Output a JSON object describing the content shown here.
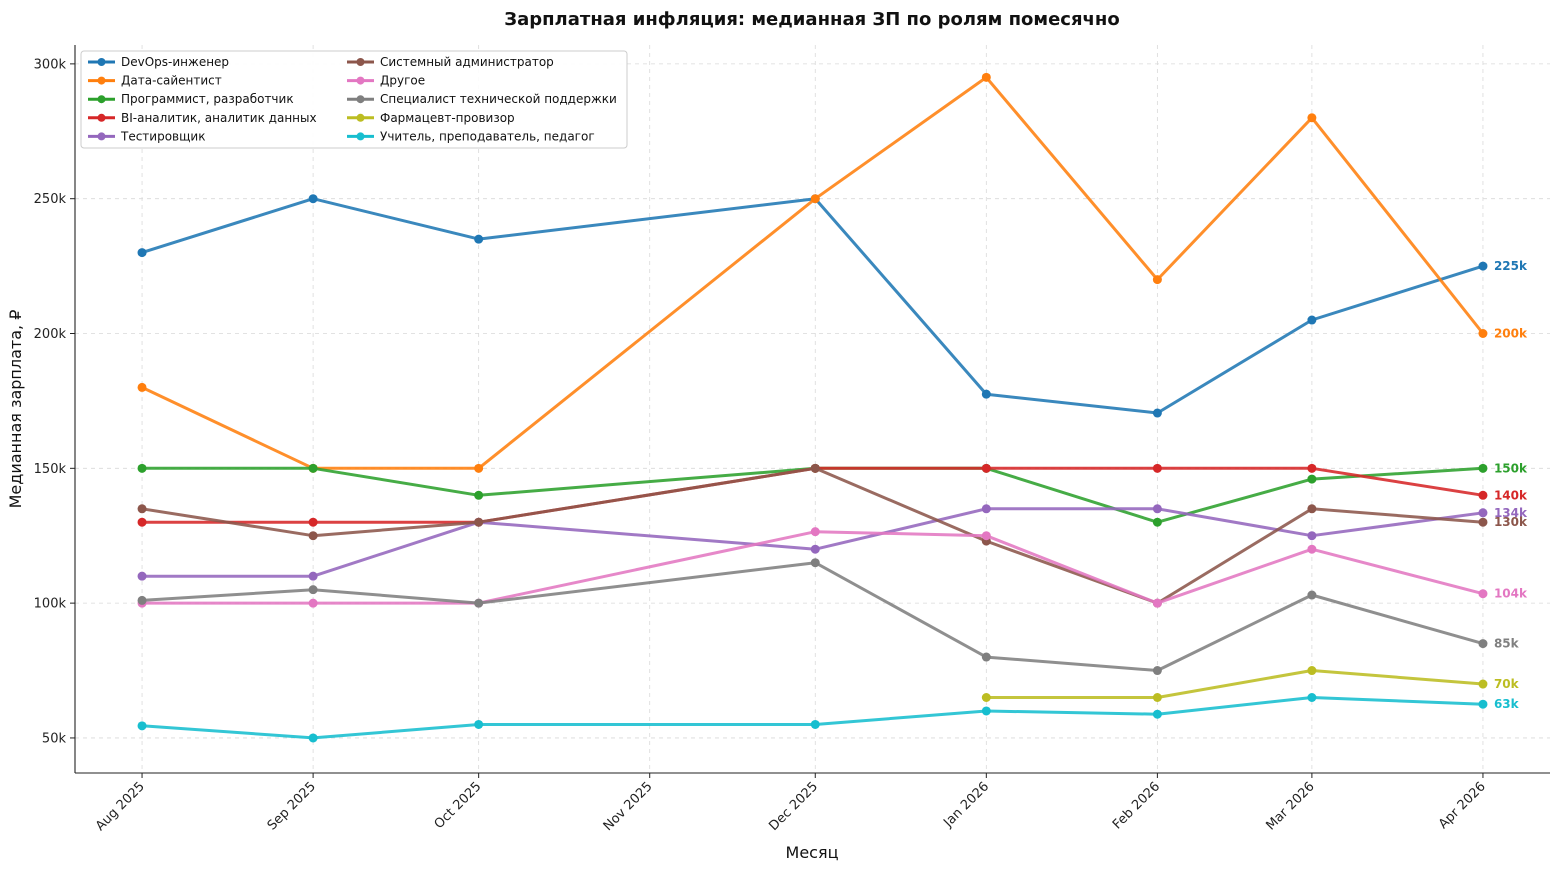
{
  "chart_data": {
    "type": "line",
    "title": "Зарплатная инфляция: медианная ЗП по ролям помесячно",
    "xlabel": "Месяц",
    "ylabel": "Медианная зарплата, ₽",
    "ylim": [
      37000,
      307000
    ],
    "y_ticks": [
      50000,
      100000,
      150000,
      200000,
      250000,
      300000
    ],
    "y_tick_labels": [
      "50k",
      "100k",
      "150k",
      "200k",
      "250k",
      "300k"
    ],
    "x": [
      "2025-08-01",
      "2025-09-01",
      "2025-10-01",
      "2025-11-01",
      "2025-12-01",
      "2026-01-01",
      "2026-02-01",
      "2026-03-01",
      "2026-04-01"
    ],
    "x_tick_labels": [
      "Aug 2025",
      "Sep 2025",
      "Oct 2025",
      "Nov 2025",
      "Dec 2025",
      "Jan 2026",
      "Feb 2026",
      "Mar 2026",
      "Apr 2026"
    ],
    "grid": true,
    "legend_position": "top-left",
    "series": [
      {
        "name": "DevOps-инженер",
        "color": "#1f77b4",
        "points": [
          [
            "2025-08-01",
            230000
          ],
          [
            "2025-09-01",
            250000
          ],
          [
            "2025-10-01",
            235000
          ],
          [
            "2025-12-01",
            250000
          ],
          [
            "2026-01-01",
            177500
          ],
          [
            "2026-02-01",
            170500
          ],
          [
            "2026-03-01",
            205000
          ],
          [
            "2026-04-01",
            225000
          ]
        ],
        "end_label": "225k"
      },
      {
        "name": "Дата-сайентист",
        "color": "#ff7f0e",
        "points": [
          [
            "2025-08-01",
            180000
          ],
          [
            "2025-09-01",
            150000
          ],
          [
            "2025-10-01",
            150000
          ],
          [
            "2025-12-01",
            250000
          ],
          [
            "2026-01-01",
            295000
          ],
          [
            "2026-02-01",
            220000
          ],
          [
            "2026-03-01",
            280000
          ],
          [
            "2026-04-01",
            200000
          ]
        ],
        "end_label": "200k"
      },
      {
        "name": "Программист, разработчик",
        "color": "#2ca02c",
        "points": [
          [
            "2025-08-01",
            150000
          ],
          [
            "2025-09-01",
            150000
          ],
          [
            "2025-10-01",
            140000
          ],
          [
            "2025-12-01",
            150000
          ],
          [
            "2026-01-01",
            150000
          ],
          [
            "2026-02-01",
            130000
          ],
          [
            "2026-03-01",
            146000
          ],
          [
            "2026-04-01",
            150000
          ]
        ],
        "end_label": "150k"
      },
      {
        "name": "BI-аналитик, аналитик данных",
        "color": "#d62728",
        "points": [
          [
            "2025-08-01",
            130000
          ],
          [
            "2025-09-01",
            130000
          ],
          [
            "2025-10-01",
            130000
          ],
          [
            "2025-12-01",
            150000
          ],
          [
            "2026-01-01",
            150000
          ],
          [
            "2026-02-01",
            150000
          ],
          [
            "2026-03-01",
            150000
          ],
          [
            "2026-04-01",
            140000
          ]
        ],
        "end_label": "140k"
      },
      {
        "name": "Тестировщик",
        "color": "#9467bd",
        "points": [
          [
            "2025-08-01",
            110000
          ],
          [
            "2025-09-01",
            110000
          ],
          [
            "2025-10-01",
            130000
          ],
          [
            "2025-12-01",
            120000
          ],
          [
            "2026-01-01",
            135000
          ],
          [
            "2026-02-01",
            135000
          ],
          [
            "2026-03-01",
            125000
          ],
          [
            "2026-04-01",
            133500
          ]
        ],
        "end_label": "134k"
      },
      {
        "name": "Системный администратор",
        "color": "#8c564b",
        "points": [
          [
            "2025-08-01",
            135000
          ],
          [
            "2025-09-01",
            125000
          ],
          [
            "2025-10-01",
            130000
          ],
          [
            "2025-12-01",
            150000
          ],
          [
            "2026-01-01",
            123000
          ],
          [
            "2026-02-01",
            100000
          ],
          [
            "2026-03-01",
            135000
          ],
          [
            "2026-04-01",
            130000
          ]
        ],
        "end_label": "130k"
      },
      {
        "name": "Другое",
        "color": "#e377c2",
        "points": [
          [
            "2025-08-01",
            100000
          ],
          [
            "2025-09-01",
            100000
          ],
          [
            "2025-10-01",
            100000
          ],
          [
            "2025-12-01",
            126500
          ],
          [
            "2026-01-01",
            125000
          ],
          [
            "2026-02-01",
            100000
          ],
          [
            "2026-03-01",
            120000
          ],
          [
            "2026-04-01",
            103500
          ]
        ],
        "end_label": "104k"
      },
      {
        "name": "Специалист технической поддержки",
        "color": "#7f7f7f",
        "points": [
          [
            "2025-08-01",
            101000
          ],
          [
            "2025-09-01",
            105000
          ],
          [
            "2025-10-01",
            100000
          ],
          [
            "2025-12-01",
            115000
          ],
          [
            "2026-01-01",
            80000
          ],
          [
            "2026-02-01",
            75000
          ],
          [
            "2026-03-01",
            103000
          ],
          [
            "2026-04-01",
            85000
          ]
        ],
        "end_label": "85k"
      },
      {
        "name": "Фармацевт-провизор",
        "color": "#bcbd22",
        "points": [
          [
            "2026-01-01",
            65000
          ],
          [
            "2026-02-01",
            65000
          ],
          [
            "2026-03-01",
            75000
          ],
          [
            "2026-04-01",
            70000
          ]
        ],
        "end_label": "70k"
      },
      {
        "name": "Учитель, преподаватель, педагог",
        "color": "#17becf",
        "points": [
          [
            "2025-08-01",
            54500
          ],
          [
            "2025-09-01",
            50000
          ],
          [
            "2025-10-01",
            55000
          ],
          [
            "2025-12-01",
            55000
          ],
          [
            "2026-01-01",
            60000
          ],
          [
            "2026-02-01",
            58800
          ],
          [
            "2026-03-01",
            65000
          ],
          [
            "2026-04-01",
            62500
          ]
        ],
        "end_label": "63k"
      }
    ]
  }
}
